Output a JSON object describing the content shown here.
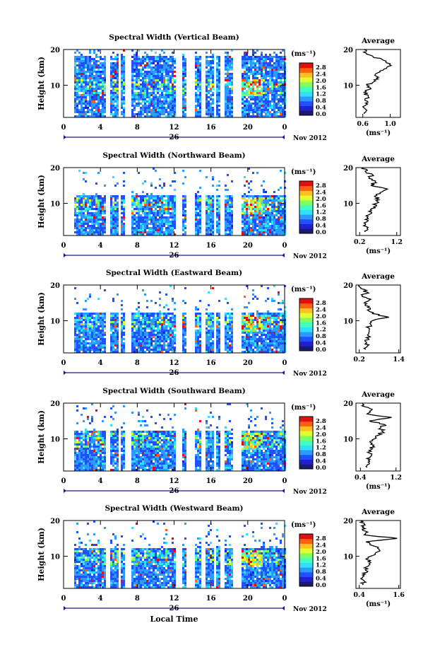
{
  "figure": {
    "date_label": "Nov 2012",
    "xlabel": "Local Time",
    "colorbar_unit": "(ms⁻¹)",
    "colorbar_ticks": [
      "0.0",
      "0.4",
      "0.8",
      "1.2",
      "1.6",
      "2.0",
      "2.4",
      "2.8"
    ],
    "colormap": [
      "#1a1a6e",
      "#2020d0",
      "#2050ff",
      "#2a9bff",
      "#30e0ff",
      "#40ffc0",
      "#80ff60",
      "#e0ff30",
      "#ffc020",
      "#ff6010",
      "#e01010"
    ]
  },
  "chart_data": [
    {
      "type": "heatmap",
      "title": "Spectral Width (Vertical Beam)",
      "ylabel": "Height (km)",
      "ylim": [
        1,
        20
      ],
      "yticks": [
        10,
        20
      ],
      "xticks": [
        "0",
        "4",
        "8",
        "12",
        "16",
        "20",
        "0"
      ],
      "xlim": [
        0,
        24
      ],
      "day_label": "26",
      "clim": [
        0.0,
        2.8
      ],
      "data_gaps_hours": [
        [
          0,
          1
        ],
        [
          4.6,
          5
        ],
        [
          5.9,
          6.2
        ],
        [
          6.5,
          7.3
        ],
        [
          12,
          12.5
        ],
        [
          12.6,
          12.8
        ],
        [
          13.3,
          14.2
        ],
        [
          14.8,
          15.3
        ],
        [
          16.3,
          16.5
        ],
        [
          17,
          17.3
        ],
        [
          18.3,
          19.2
        ]
      ],
      "profile": {
        "title": "Average",
        "xlabel": "(ms⁻¹)",
        "xticks": [
          "0.6",
          "1.0"
        ],
        "xlim": [
          0.5,
          1.15
        ],
        "heights": [
          2,
          3,
          4,
          5,
          6,
          7,
          8,
          9,
          10,
          11,
          12,
          13,
          14,
          15,
          16,
          17,
          18,
          19,
          20
        ],
        "values": [
          0.62,
          0.66,
          0.6,
          0.64,
          0.63,
          0.68,
          0.62,
          0.72,
          0.66,
          0.76,
          0.8,
          0.78,
          0.85,
          0.95,
          1.0,
          0.9,
          0.75,
          0.65,
          0.62
        ]
      }
    },
    {
      "type": "heatmap",
      "title": "Spectral Width (Northward Beam)",
      "ylabel": "Height (km)",
      "ylim": [
        1,
        20
      ],
      "yticks": [
        10,
        20
      ],
      "xticks": [
        "0",
        "4",
        "8",
        "12",
        "16",
        "20",
        "0"
      ],
      "xlim": [
        0,
        24
      ],
      "day_label": "26",
      "clim": [
        0.0,
        2.8
      ],
      "data_gaps_hours": [
        [
          0,
          1
        ],
        [
          4.6,
          5
        ],
        [
          5.9,
          6.2
        ],
        [
          6.5,
          7.3
        ],
        [
          12,
          12.5
        ],
        [
          12.6,
          12.8
        ],
        [
          13.3,
          14.2
        ],
        [
          14.8,
          15.3
        ],
        [
          16.3,
          16.5
        ],
        [
          17,
          17.3
        ],
        [
          18.3,
          19.2
        ]
      ],
      "profile": {
        "title": "Average",
        "xlabel": "(ms⁻¹)",
        "xticks": [
          "0.2",
          "1.2"
        ],
        "xlim": [
          0.1,
          1.3
        ],
        "heights": [
          2,
          3,
          4,
          5,
          6,
          7,
          8,
          9,
          10,
          11,
          12,
          13,
          14,
          15,
          16,
          17,
          18,
          19,
          20
        ],
        "values": [
          0.35,
          0.4,
          0.36,
          0.42,
          0.4,
          0.48,
          0.52,
          0.58,
          0.65,
          0.72,
          0.6,
          0.75,
          0.95,
          0.5,
          0.62,
          0.45,
          0.55,
          0.35,
          0.3
        ]
      }
    },
    {
      "type": "heatmap",
      "title": "Spectral Width (Eastward Beam)",
      "ylabel": "Height (km)",
      "ylim": [
        1,
        20
      ],
      "yticks": [
        10,
        20
      ],
      "xticks": [
        "0",
        "4",
        "8",
        "12",
        "16",
        "20",
        "0"
      ],
      "xlim": [
        0,
        24
      ],
      "day_label": "26",
      "clim": [
        0.0,
        2.8
      ],
      "data_gaps_hours": [
        [
          0,
          1
        ],
        [
          4.6,
          5
        ],
        [
          5.9,
          6.2
        ],
        [
          6.5,
          7.3
        ],
        [
          12,
          12.5
        ],
        [
          12.6,
          12.8
        ],
        [
          13.3,
          14.2
        ],
        [
          14.8,
          15.3
        ],
        [
          16.3,
          16.5
        ],
        [
          17,
          17.3
        ],
        [
          18.3,
          19.2
        ]
      ],
      "profile": {
        "title": "Average",
        "xlabel": "",
        "xticks": [
          "0.2",
          "1.4"
        ],
        "xlim": [
          0.1,
          1.45
        ],
        "heights": [
          2,
          3,
          4,
          5,
          6,
          7,
          8,
          9,
          10,
          11,
          12,
          13,
          14,
          15,
          16,
          17,
          18,
          19,
          20
        ],
        "values": [
          0.4,
          0.45,
          0.42,
          0.48,
          0.45,
          0.5,
          0.48,
          0.55,
          0.6,
          1.1,
          0.6,
          0.45,
          0.5,
          0.35,
          0.55,
          0.3,
          0.45,
          0.25,
          0.2
        ]
      }
    },
    {
      "type": "heatmap",
      "title": "Spectral Width (Southward Beam)",
      "ylabel": "Height (km)",
      "ylim": [
        1,
        20
      ],
      "yticks": [
        10,
        20
      ],
      "xticks": [
        "0",
        "4",
        "8",
        "12",
        "16",
        "20",
        "0"
      ],
      "xlim": [
        0,
        24
      ],
      "day_label": "26",
      "clim": [
        0.0,
        2.8
      ],
      "data_gaps_hours": [
        [
          0,
          1
        ],
        [
          4.6,
          5
        ],
        [
          5.9,
          6.2
        ],
        [
          6.5,
          7.3
        ],
        [
          12,
          12.5
        ],
        [
          12.6,
          12.8
        ],
        [
          13.3,
          14.2
        ],
        [
          14.8,
          15.3
        ],
        [
          16.3,
          16.5
        ],
        [
          17,
          17.3
        ],
        [
          18.3,
          19.2
        ]
      ],
      "profile": {
        "title": "Average",
        "xlabel": "(ms⁻¹)",
        "xticks": [
          "0.4",
          "1.2"
        ],
        "xlim": [
          0.3,
          1.3
        ],
        "heights": [
          2,
          3,
          4,
          5,
          6,
          7,
          8,
          9,
          10,
          11,
          12,
          13,
          14,
          15,
          16,
          17,
          18,
          19,
          20
        ],
        "values": [
          0.55,
          0.6,
          0.58,
          0.62,
          0.6,
          0.65,
          0.68,
          0.62,
          0.72,
          0.8,
          0.9,
          0.85,
          0.95,
          0.6,
          1.1,
          0.55,
          0.65,
          0.5,
          0.45
        ]
      }
    },
    {
      "type": "heatmap",
      "title": "Spectral Width (Westward Beam)",
      "ylabel": "Height (km)",
      "ylim": [
        1,
        20
      ],
      "yticks": [
        10,
        20
      ],
      "xticks": [
        "0",
        "4",
        "8",
        "12",
        "16",
        "20",
        "0"
      ],
      "xlim": [
        0,
        24
      ],
      "day_label": "26",
      "clim": [
        0.0,
        2.8
      ],
      "data_gaps_hours": [
        [
          0,
          1
        ],
        [
          4.6,
          5
        ],
        [
          5.9,
          6.2
        ],
        [
          6.5,
          7.3
        ],
        [
          12,
          12.5
        ],
        [
          12.6,
          12.8
        ],
        [
          13.3,
          14.2
        ],
        [
          14.8,
          15.3
        ],
        [
          16.3,
          16.5
        ],
        [
          17,
          17.3
        ],
        [
          18.3,
          19.2
        ]
      ],
      "profile": {
        "title": "Average",
        "xlabel": "(ms⁻¹)",
        "xticks": [
          "0.4",
          "1.6"
        ],
        "xlim": [
          0.3,
          1.65
        ],
        "heights": [
          2,
          3,
          4,
          5,
          6,
          7,
          8,
          9,
          10,
          11,
          12,
          13,
          14,
          15,
          16,
          17,
          18,
          19,
          20
        ],
        "values": [
          0.5,
          0.55,
          0.5,
          0.58,
          0.6,
          0.62,
          0.7,
          0.65,
          0.75,
          0.9,
          1.0,
          0.8,
          0.6,
          1.55,
          0.55,
          0.6,
          0.5,
          0.55,
          0.45
        ]
      }
    }
  ]
}
